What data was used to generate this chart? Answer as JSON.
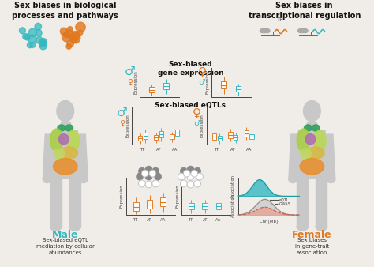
{
  "bg_color": "#f0ede8",
  "teal": "#35b8c0",
  "orange": "#e07820",
  "gray_body": "#c8c8c8",
  "organ_colors": [
    "#40b870",
    "#90c060",
    "#b0d870",
    "#c088b0",
    "#d8c040",
    "#e89030",
    "#f0a020"
  ],
  "left_title": "Sex biases in biological\nprocesses and pathways",
  "right_title": "Sex biases in\ntranscriptional regulation",
  "center_title1": "Sex-biased\ngene expression",
  "center_title2": "Sex-biased eQTLs",
  "male_label": "Male",
  "female_label": "Female",
  "male_sub": "Sex-biased eQTL\nmediation by cellular\nabundances",
  "female_sub": "Sex biases\nin gene-trait\nassociation",
  "tf_label": "TF"
}
